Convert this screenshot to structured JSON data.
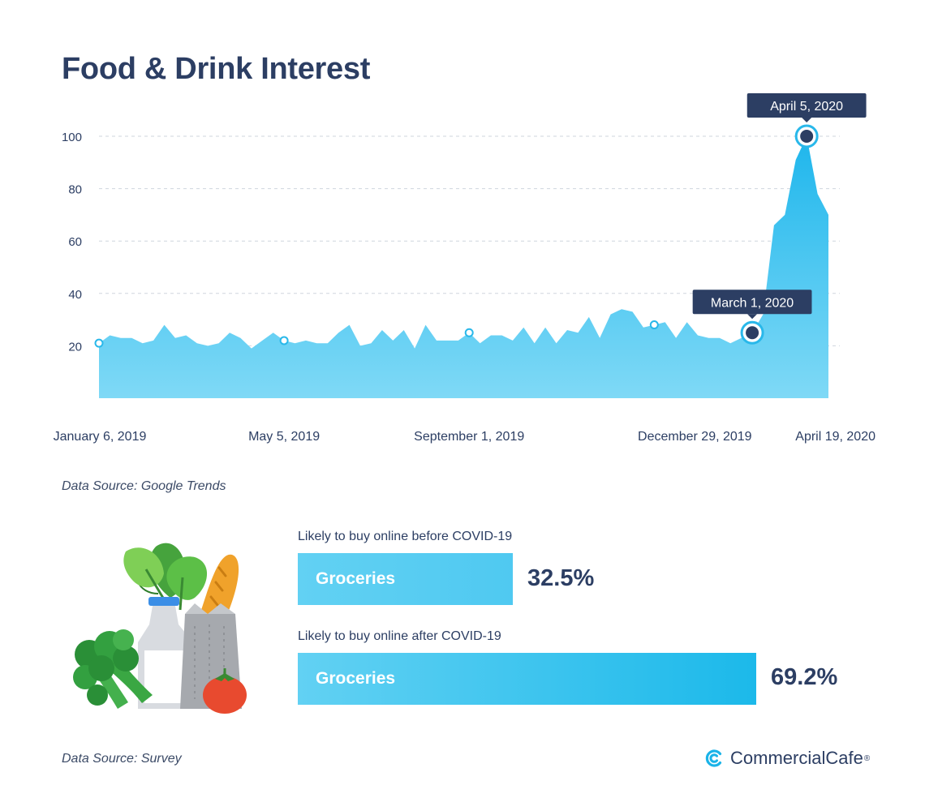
{
  "chart_data": {
    "type": "area",
    "title": "Food & Drink Interest",
    "yticks": [
      20,
      40,
      60,
      80,
      100
    ],
    "ylim": [
      0,
      100
    ],
    "xlim": [
      "2019-01-06",
      "2020-04-19"
    ],
    "xtick_labels": [
      "January 6, 2019",
      "May 5, 2019",
      "September 1, 2019",
      "December 29, 2019",
      "April 19, 2020"
    ],
    "grid": true,
    "color": "#29b8ea",
    "series": [
      {
        "values": [
          {
            "x": "2019-01-06",
            "y": 21
          },
          {
            "x": "2019-01-13",
            "y": 24
          },
          {
            "x": "2019-01-20",
            "y": 23
          },
          {
            "x": "2019-01-27",
            "y": 23
          },
          {
            "x": "2019-02-03",
            "y": 21
          },
          {
            "x": "2019-02-10",
            "y": 22
          },
          {
            "x": "2019-02-17",
            "y": 28
          },
          {
            "x": "2019-02-24",
            "y": 23
          },
          {
            "x": "2019-03-03",
            "y": 24
          },
          {
            "x": "2019-03-10",
            "y": 21
          },
          {
            "x": "2019-03-17",
            "y": 20
          },
          {
            "x": "2019-03-24",
            "y": 21
          },
          {
            "x": "2019-03-31",
            "y": 25
          },
          {
            "x": "2019-04-07",
            "y": 23
          },
          {
            "x": "2019-04-14",
            "y": 19
          },
          {
            "x": "2019-04-21",
            "y": 22
          },
          {
            "x": "2019-04-28",
            "y": 25
          },
          {
            "x": "2019-05-05",
            "y": 22
          },
          {
            "x": "2019-05-12",
            "y": 21
          },
          {
            "x": "2019-05-19",
            "y": 22
          },
          {
            "x": "2019-05-26",
            "y": 21
          },
          {
            "x": "2019-06-02",
            "y": 21
          },
          {
            "x": "2019-06-09",
            "y": 25
          },
          {
            "x": "2019-06-16",
            "y": 28
          },
          {
            "x": "2019-06-23",
            "y": 20
          },
          {
            "x": "2019-06-30",
            "y": 21
          },
          {
            "x": "2019-07-07",
            "y": 26
          },
          {
            "x": "2019-07-14",
            "y": 22
          },
          {
            "x": "2019-07-21",
            "y": 26
          },
          {
            "x": "2019-07-28",
            "y": 19
          },
          {
            "x": "2019-08-04",
            "y": 28
          },
          {
            "x": "2019-08-11",
            "y": 22
          },
          {
            "x": "2019-08-18",
            "y": 22
          },
          {
            "x": "2019-08-25",
            "y": 22
          },
          {
            "x": "2019-09-01",
            "y": 25
          },
          {
            "x": "2019-09-08",
            "y": 21
          },
          {
            "x": "2019-09-15",
            "y": 24
          },
          {
            "x": "2019-09-22",
            "y": 24
          },
          {
            "x": "2019-09-29",
            "y": 22
          },
          {
            "x": "2019-10-06",
            "y": 27
          },
          {
            "x": "2019-10-13",
            "y": 21
          },
          {
            "x": "2019-10-20",
            "y": 27
          },
          {
            "x": "2019-10-27",
            "y": 21
          },
          {
            "x": "2019-11-03",
            "y": 26
          },
          {
            "x": "2019-11-10",
            "y": 25
          },
          {
            "x": "2019-11-17",
            "y": 31
          },
          {
            "x": "2019-11-24",
            "y": 23
          },
          {
            "x": "2019-12-01",
            "y": 32
          },
          {
            "x": "2019-12-08",
            "y": 34
          },
          {
            "x": "2019-12-15",
            "y": 33
          },
          {
            "x": "2019-12-22",
            "y": 27
          },
          {
            "x": "2019-12-29",
            "y": 28
          },
          {
            "x": "2020-01-05",
            "y": 29
          },
          {
            "x": "2020-01-12",
            "y": 23
          },
          {
            "x": "2020-01-19",
            "y": 29
          },
          {
            "x": "2020-01-26",
            "y": 24
          },
          {
            "x": "2020-02-02",
            "y": 23
          },
          {
            "x": "2020-02-09",
            "y": 23
          },
          {
            "x": "2020-02-16",
            "y": 21
          },
          {
            "x": "2020-02-23",
            "y": 23
          },
          {
            "x": "2020-03-01",
            "y": 25
          },
          {
            "x": "2020-03-08",
            "y": 32
          },
          {
            "x": "2020-03-15",
            "y": 66
          },
          {
            "x": "2020-03-22",
            "y": 70
          },
          {
            "x": "2020-03-29",
            "y": 91
          },
          {
            "x": "2020-04-05",
            "y": 100
          },
          {
            "x": "2020-04-12",
            "y": 78
          },
          {
            "x": "2020-04-19",
            "y": 70
          }
        ]
      }
    ],
    "markers": [
      "2019-01-06",
      "2019-05-05",
      "2019-09-01",
      "2019-12-29"
    ],
    "annotations": [
      {
        "x": "2020-03-01",
        "y": 25,
        "label": "March 1, 2020"
      },
      {
        "x": "2020-04-05",
        "y": 100,
        "label": "April 5, 2020"
      }
    ]
  },
  "chart_source": "Data Source: Google Trends",
  "survey": {
    "bars": [
      {
        "caption": "Likely to buy online before COVID-19",
        "label": "Groceries",
        "value": 32.5,
        "value_text": "32.5%"
      },
      {
        "caption": "Likely to buy online after COVID-19",
        "label": "Groceries",
        "value": 69.2,
        "value_text": "69.2%"
      }
    ],
    "source": "Data Source: Survey"
  },
  "brand": {
    "name": "CommercialCafe",
    "mark": "®",
    "icon": "commercialcafe-logo-icon",
    "color": "#1ab3e8"
  },
  "illustration": {
    "icon": "groceries-bag-icon"
  }
}
